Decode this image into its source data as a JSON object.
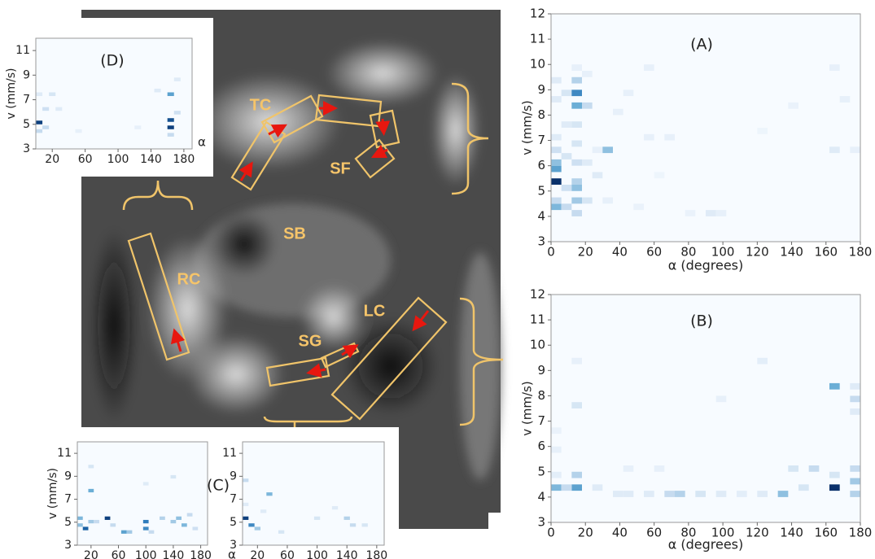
{
  "image": {
    "labels": [
      "TC",
      "SF",
      "SB",
      "RC",
      "LC",
      "SG"
    ]
  },
  "chart_data": [
    {
      "type": "heatmap",
      "title": "(A)",
      "x_label": "α (degrees)",
      "y_label": "v (mm/s)",
      "xlim": [
        0,
        180
      ],
      "ylim": [
        3,
        12
      ],
      "xticks": [
        0,
        20,
        40,
        60,
        80,
        100,
        120,
        140,
        160,
        180
      ],
      "yticks": [
        3,
        4,
        5,
        6,
        7,
        8,
        9,
        10,
        11,
        12
      ],
      "xbin": 6,
      "ybin": 0.25,
      "cells": [
        [
          0,
          5.25,
          1
        ],
        [
          0,
          5.75,
          0.6
        ],
        [
          0,
          6.0,
          0.45
        ],
        [
          0,
          4.25,
          0.5
        ],
        [
          0,
          4.5,
          0.3
        ],
        [
          0,
          6.5,
          0.25
        ],
        [
          0,
          7.0,
          0.15
        ],
        [
          0,
          8.5,
          0.15
        ],
        [
          0,
          9.25,
          0.15
        ],
        [
          6,
          4.25,
          0.3
        ],
        [
          6,
          5.0,
          0.25
        ],
        [
          6,
          6.25,
          0.2
        ],
        [
          6,
          7.5,
          0.15
        ],
        [
          6,
          8.75,
          0.2
        ],
        [
          12,
          8.75,
          0.7
        ],
        [
          12,
          8.25,
          0.55
        ],
        [
          12,
          9.25,
          0.35
        ],
        [
          12,
          4.0,
          0.3
        ],
        [
          12,
          4.5,
          0.4
        ],
        [
          12,
          5.0,
          0.45
        ],
        [
          12,
          5.25,
          0.35
        ],
        [
          12,
          6.0,
          0.25
        ],
        [
          12,
          6.75,
          0.2
        ],
        [
          12,
          7.5,
          0.2
        ],
        [
          12,
          9.75,
          0.1
        ],
        [
          18,
          8.25,
          0.3
        ],
        [
          18,
          4.5,
          0.2
        ],
        [
          18,
          6.0,
          0.15
        ],
        [
          18,
          9.5,
          0.1
        ],
        [
          24,
          5.5,
          0.15
        ],
        [
          24,
          6.5,
          0.1
        ],
        [
          30,
          6.5,
          0.45
        ],
        [
          30,
          4.5,
          0.1
        ],
        [
          42,
          8.75,
          0.1
        ],
        [
          54,
          9.75,
          0.1
        ],
        [
          54,
          7.0,
          0.1
        ],
        [
          66,
          7.0,
          0.1
        ],
        [
          90,
          4.0,
          0.15
        ],
        [
          96,
          4.0,
          0.1
        ],
        [
          78,
          4.0,
          0.08
        ],
        [
          138,
          8.25,
          0.08
        ],
        [
          162,
          6.5,
          0.15
        ],
        [
          162,
          9.75,
          0.1
        ],
        [
          174,
          6.5,
          0.1
        ],
        [
          168,
          8.5,
          0.1
        ],
        [
          120,
          7.25,
          0.06
        ],
        [
          60,
          5.5,
          0.06
        ],
        [
          36,
          8.0,
          0.1
        ],
        [
          48,
          4.25,
          0.08
        ]
      ]
    },
    {
      "type": "heatmap",
      "title": "(B)",
      "x_label": "α (degrees)",
      "y_label": "v (mm/s)",
      "xlim": [
        0,
        180
      ],
      "ylim": [
        3,
        12
      ],
      "xticks": [
        0,
        20,
        40,
        60,
        80,
        100,
        120,
        140,
        160,
        180
      ],
      "yticks": [
        3,
        4,
        5,
        6,
        7,
        8,
        9,
        10,
        11,
        12
      ],
      "xbin": 6,
      "ybin": 0.25,
      "cells": [
        [
          0,
          4.25,
          0.5
        ],
        [
          12,
          4.25,
          0.6
        ],
        [
          12,
          4.75,
          0.35
        ],
        [
          12,
          7.5,
          0.2
        ],
        [
          6,
          4.25,
          0.3
        ],
        [
          24,
          4.25,
          0.15
        ],
        [
          36,
          4.0,
          0.15
        ],
        [
          42,
          4.0,
          0.15
        ],
        [
          54,
          4.0,
          0.15
        ],
        [
          66,
          4.0,
          0.3
        ],
        [
          72,
          4.0,
          0.35
        ],
        [
          84,
          4.0,
          0.2
        ],
        [
          96,
          4.0,
          0.15
        ],
        [
          108,
          4.0,
          0.12
        ],
        [
          120,
          4.0,
          0.15
        ],
        [
          132,
          4.0,
          0.45
        ],
        [
          144,
          4.25,
          0.2
        ],
        [
          150,
          5.0,
          0.3
        ],
        [
          162,
          4.25,
          1
        ],
        [
          162,
          8.25,
          0.55
        ],
        [
          162,
          4.75,
          0.2
        ],
        [
          174,
          4.0,
          0.35
        ],
        [
          174,
          4.5,
          0.4
        ],
        [
          174,
          5.0,
          0.3
        ],
        [
          174,
          7.75,
          0.3
        ],
        [
          174,
          8.25,
          0.15
        ],
        [
          174,
          7.25,
          0.15
        ],
        [
          0,
          4.75,
          0.12
        ],
        [
          0,
          5.75,
          0.1
        ],
        [
          0,
          6.5,
          0.08
        ],
        [
          12,
          9.25,
          0.1
        ],
        [
          120,
          9.25,
          0.12
        ],
        [
          60,
          5.0,
          0.1
        ],
        [
          96,
          7.75,
          0.1
        ],
        [
          138,
          5.0,
          0.2
        ],
        [
          42,
          5.0,
          0.1
        ]
      ]
    },
    {
      "type": "heatmap",
      "title": "(D)",
      "x_label": "α",
      "y_label": "v (mm/s)",
      "xlim": [
        0,
        190
      ],
      "ylim": [
        3,
        12
      ],
      "xticks": [
        20,
        60,
        100,
        140,
        180
      ],
      "yticks": [
        3,
        5,
        7,
        9,
        11
      ],
      "xbin": 8,
      "ybin": 0.3,
      "cells": [
        [
          0,
          5,
          0.95
        ],
        [
          0,
          4.3,
          0.3
        ],
        [
          8,
          4.6,
          0.3
        ],
        [
          8,
          6.1,
          0.25
        ],
        [
          16,
          7.3,
          0.2
        ],
        [
          24,
          6.1,
          0.15
        ],
        [
          0,
          7.3,
          0.15
        ],
        [
          160,
          4.6,
          0.95
        ],
        [
          160,
          5.2,
          0.9
        ],
        [
          160,
          7.3,
          0.6
        ],
        [
          160,
          4.0,
          0.3
        ],
        [
          168,
          5.8,
          0.25
        ],
        [
          168,
          8.5,
          0.15
        ],
        [
          144,
          7.6,
          0.15
        ],
        [
          120,
          4.6,
          0.1
        ],
        [
          48,
          4.3,
          0.1
        ]
      ]
    },
    {
      "type": "heatmap",
      "y_label": "v (mm/s)",
      "xlim": [
        0,
        190
      ],
      "ylim": [
        3,
        12
      ],
      "xticks": [
        20,
        60,
        100,
        140,
        180
      ],
      "yticks": [
        3,
        5,
        7,
        9,
        11
      ],
      "xbin": 8,
      "ybin": 0.3,
      "cells": [
        [
          0,
          5.2,
          0.5
        ],
        [
          0,
          4.6,
          0.45
        ],
        [
          8,
          4.3,
          0.85
        ],
        [
          16,
          7.6,
          0.55
        ],
        [
          16,
          4.9,
          0.4
        ],
        [
          24,
          4.9,
          0.3
        ],
        [
          40,
          5.2,
          0.95
        ],
        [
          48,
          4.6,
          0.3
        ],
        [
          64,
          4.0,
          0.6
        ],
        [
          72,
          4.0,
          0.4
        ],
        [
          96,
          4.9,
          0.75
        ],
        [
          96,
          4.3,
          0.7
        ],
        [
          104,
          4.0,
          0.3
        ],
        [
          120,
          5.2,
          0.35
        ],
        [
          136,
          4.9,
          0.4
        ],
        [
          144,
          5.2,
          0.45
        ],
        [
          152,
          4.6,
          0.5
        ],
        [
          160,
          5.5,
          0.3
        ],
        [
          168,
          4.3,
          0.25
        ],
        [
          136,
          8.8,
          0.2
        ],
        [
          16,
          9.7,
          0.2
        ],
        [
          96,
          8.2,
          0.15
        ]
      ]
    },
    {
      "type": "heatmap",
      "title": "(C)",
      "x_label": "α",
      "xlim": [
        0,
        190
      ],
      "ylim": [
        3,
        12
      ],
      "xticks": [
        20,
        60,
        100,
        140,
        180
      ],
      "yticks": [
        3,
        5,
        7,
        9,
        11
      ],
      "xbin": 8,
      "ybin": 0.3,
      "cells": [
        [
          0,
          5.2,
          0.95
        ],
        [
          0,
          8.5,
          0.3
        ],
        [
          8,
          4.6,
          0.7
        ],
        [
          16,
          4.3,
          0.4
        ],
        [
          32,
          7.3,
          0.5
        ],
        [
          48,
          4.0,
          0.2
        ],
        [
          96,
          5.2,
          0.2
        ],
        [
          120,
          6.1,
          0.15
        ],
        [
          136,
          5.2,
          0.35
        ],
        [
          144,
          4.6,
          0.3
        ],
        [
          160,
          4.6,
          0.2
        ],
        [
          24,
          5.8,
          0.15
        ],
        [
          0,
          6.4,
          0.15
        ]
      ]
    }
  ]
}
